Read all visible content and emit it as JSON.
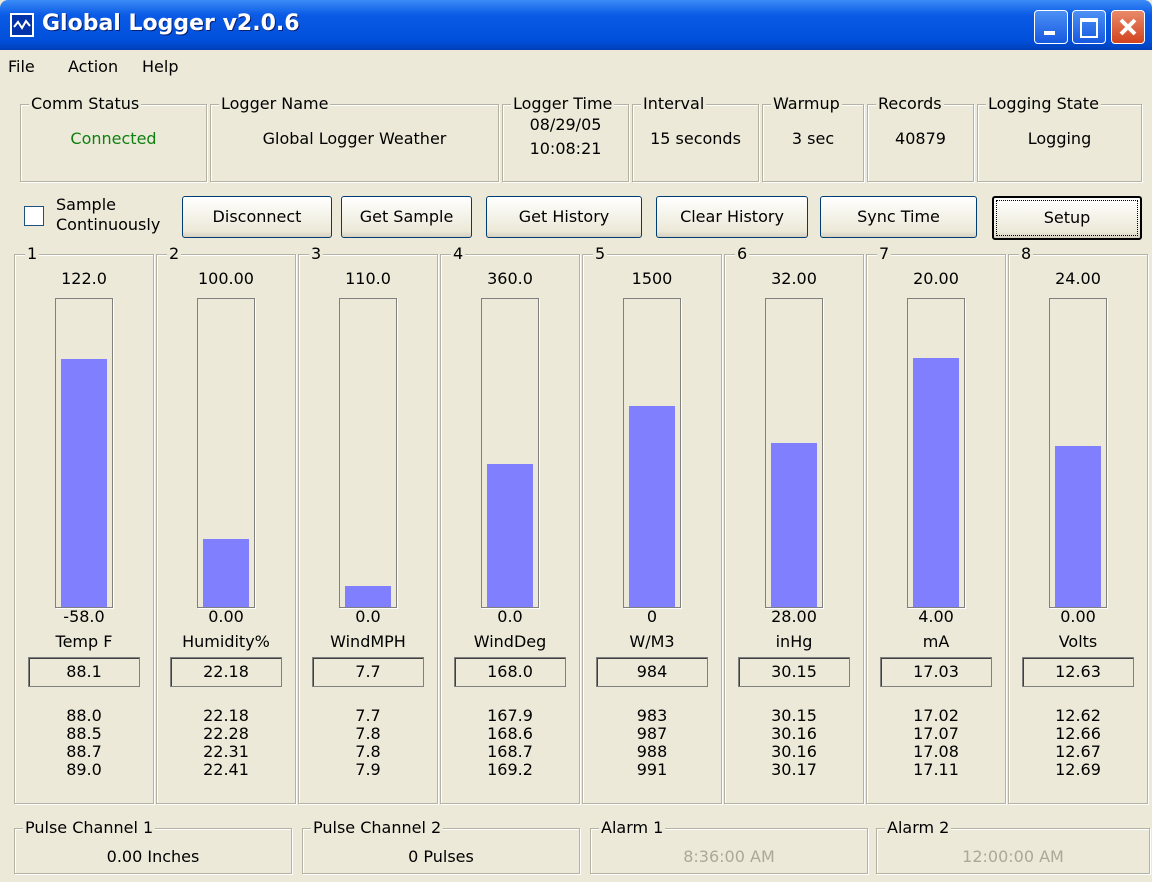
{
  "window": {
    "title": "Global Logger v2.0.6"
  },
  "menu": [
    "File",
    "Action",
    "Help"
  ],
  "status": [
    {
      "label": "Comm Status",
      "lines": [
        "Connected"
      ]
    },
    {
      "label": "Logger Name",
      "lines": [
        "Global Logger Weather"
      ]
    },
    {
      "label": "Logger Time",
      "lines": [
        "08/29/05",
        "10:08:21"
      ]
    },
    {
      "label": "Interval",
      "lines": [
        "15 seconds"
      ]
    },
    {
      "label": "Warmup",
      "lines": [
        "3 sec"
      ]
    },
    {
      "label": "Records",
      "lines": [
        "40879"
      ]
    },
    {
      "label": "Logging State",
      "lines": [
        "Logging"
      ]
    }
  ],
  "controls": {
    "checkbox": "Sample Continuously",
    "buttons": [
      "Disconnect",
      "Get Sample",
      "Get History",
      "Clear History",
      "Sync Time",
      "Setup"
    ]
  },
  "channels": [
    {
      "number": "1",
      "max": "122.0",
      "min": "-58.0",
      "unit": "Temp F",
      "current": "88.1",
      "history": [
        "88.0",
        "88.5",
        "88.7",
        "89.0"
      ]
    },
    {
      "number": "2",
      "max": "100.00",
      "min": "0.00",
      "unit": "Humidity%",
      "current": "22.18",
      "history": [
        "22.18",
        "22.28",
        "22.31",
        "22.41"
      ]
    },
    {
      "number": "3",
      "max": "110.0",
      "min": "0.0",
      "unit": "WindMPH",
      "current": "7.7",
      "history": [
        "7.7",
        "7.8",
        "7.8",
        "7.9"
      ]
    },
    {
      "number": "4",
      "max": "360.0",
      "min": "0.0",
      "unit": "WindDeg",
      "current": "168.0",
      "history": [
        "167.9",
        "168.6",
        "168.7",
        "169.2"
      ]
    },
    {
      "number": "5",
      "max": "1500",
      "min": "0",
      "unit": "W/M3",
      "current": "984",
      "history": [
        "983",
        "987",
        "988",
        "991"
      ]
    },
    {
      "number": "6",
      "max": "32.00",
      "min": "28.00",
      "unit": "inHg",
      "current": "30.15",
      "history": [
        "30.15",
        "30.16",
        "30.16",
        "30.17"
      ]
    },
    {
      "number": "7",
      "max": "20.00",
      "min": "4.00",
      "unit": "mA",
      "current": "17.03",
      "history": [
        "17.02",
        "17.07",
        "17.08",
        "17.11"
      ]
    },
    {
      "number": "8",
      "max": "24.00",
      "min": "0.00",
      "unit": "Volts",
      "current": "12.63",
      "history": [
        "12.62",
        "12.66",
        "12.67",
        "12.69"
      ]
    }
  ],
  "footer": [
    {
      "label": "Pulse Channel 1",
      "value": "0.00 Inches",
      "disabled": false
    },
    {
      "label": "Pulse Channel 2",
      "value": "0 Pulses",
      "disabled": false
    },
    {
      "label": "Alarm 1",
      "value": "8:36:00 AM",
      "disabled": true
    },
    {
      "label": "Alarm 2",
      "value": "12:00:00 AM",
      "disabled": true
    }
  ]
}
